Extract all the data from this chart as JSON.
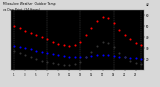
{
  "background_color": "#d8d8d8",
  "plot_bg_color": "#000000",
  "temp": [
    50,
    48,
    46,
    44,
    42,
    40,
    38,
    36,
    34,
    33,
    32,
    33,
    36,
    42,
    48,
    55,
    58,
    57,
    53,
    47,
    42,
    38,
    35,
    33
  ],
  "dew": [
    32,
    31,
    30,
    29,
    28,
    27,
    26,
    25,
    24,
    23,
    22,
    22,
    22,
    22,
    23,
    24,
    24,
    24,
    23,
    22,
    22,
    21,
    21,
    20
  ],
  "outdoor": [
    28,
    26,
    24,
    22,
    20,
    19,
    18,
    17,
    16,
    15,
    15,
    16,
    18,
    22,
    27,
    32,
    36,
    35,
    31,
    26,
    22,
    19,
    17,
    16
  ],
  "temp_color": "#ff0000",
  "dew_color": "#0000ff",
  "outdoor_color": "#000000",
  "marker_size": 1.5,
  "ylim": [
    10,
    65
  ],
  "ytick_values": [
    60,
    50,
    40,
    30,
    20
  ],
  "ytick_labels": [
    "60",
    "50",
    "40",
    "30",
    "20"
  ],
  "grid_color": "#888888",
  "grid_positions": [
    0,
    6,
    12,
    18,
    23
  ],
  "title_bar_blue": "#0033cc",
  "title_bar_red": "#cc0000",
  "xlim": [
    -0.5,
    23.5
  ],
  "x_tick_every": 2,
  "title_text1": "Milwaukee Weather  Outdoor Temp",
  "title_text2": "vs Dew Point  (24 Hours)",
  "current_val_str": "42",
  "spine_color": "#888888"
}
